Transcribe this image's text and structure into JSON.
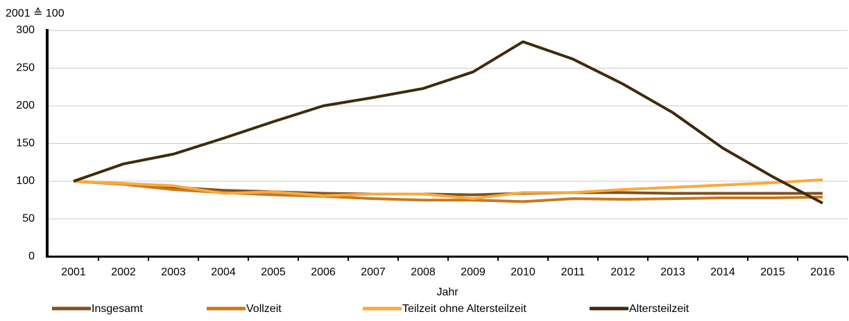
{
  "chart_data": {
    "type": "line",
    "subtitle": "2001 ≙ 100",
    "x_label": "Jahr",
    "categories": [
      "2001",
      "2002",
      "2003",
      "2004",
      "2005",
      "2006",
      "2007",
      "2008",
      "2009",
      "2010",
      "2011",
      "2012",
      "2013",
      "2014",
      "2015",
      "2016"
    ],
    "series": [
      {
        "name": "Insgesamt",
        "color": "#7f4f1f",
        "values": [
          100,
          97,
          92,
          88,
          86,
          84,
          83,
          83,
          82,
          84,
          85,
          85,
          84,
          84,
          84,
          84
        ]
      },
      {
        "name": "Vollzeit",
        "color": "#c8781e",
        "values": [
          100,
          96,
          89,
          85,
          82,
          80,
          77,
          75,
          75,
          73,
          77,
          76,
          77,
          78,
          78,
          79
        ]
      },
      {
        "name": "Teilzeit ohne Altersteilzeit",
        "color": "#fba93a",
        "values": [
          100,
          97,
          94,
          84,
          86,
          81,
          83,
          83,
          77,
          85,
          85,
          89,
          92,
          95,
          98,
          102
        ]
      },
      {
        "name": "Altersteilzeit",
        "color": "#3f2a0c",
        "values": [
          100,
          123,
          136,
          157,
          179,
          200,
          211,
          223,
          245,
          285,
          262,
          229,
          191,
          144,
          106,
          71
        ]
      }
    ],
    "ylim": [
      0,
      300
    ],
    "yticks": [
      0,
      50,
      100,
      150,
      200,
      250,
      300
    ],
    "grid": true
  }
}
